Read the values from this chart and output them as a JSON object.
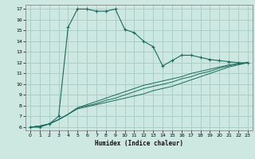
{
  "title": "",
  "xlabel": "Humidex (Indice chaleur)",
  "ylabel": "",
  "bg_color": "#cce8e0",
  "grid_color": "#aacfc8",
  "line_color": "#1a6b5e",
  "xlim": [
    -0.5,
    23.5
  ],
  "ylim": [
    5.7,
    17.4
  ],
  "xticks": [
    0,
    1,
    2,
    3,
    4,
    5,
    6,
    7,
    8,
    9,
    10,
    11,
    12,
    13,
    14,
    15,
    16,
    17,
    18,
    19,
    20,
    21,
    22,
    23
  ],
  "yticks": [
    6,
    7,
    8,
    9,
    10,
    11,
    12,
    13,
    14,
    15,
    16,
    17
  ],
  "curve1_x": [
    0,
    1,
    2,
    3,
    4,
    5,
    6,
    7,
    8,
    9,
    10,
    11,
    12,
    13,
    14,
    15,
    16,
    17,
    18,
    19,
    20,
    21,
    22,
    23
  ],
  "curve1_y": [
    6.0,
    6.0,
    6.3,
    7.0,
    15.3,
    17.0,
    17.0,
    16.8,
    16.8,
    17.0,
    15.1,
    14.8,
    14.0,
    13.5,
    11.7,
    12.2,
    12.7,
    12.7,
    12.5,
    12.3,
    12.2,
    12.1,
    12.0,
    12.0
  ],
  "curve2_x": [
    0,
    1,
    2,
    3,
    4,
    5,
    6,
    7,
    8,
    9,
    10,
    11,
    12,
    13,
    14,
    15,
    16,
    17,
    18,
    19,
    20,
    21,
    22,
    23
  ],
  "curve2_y": [
    6.0,
    6.1,
    6.3,
    6.7,
    7.2,
    7.7,
    7.9,
    8.1,
    8.3,
    8.5,
    8.7,
    8.9,
    9.1,
    9.4,
    9.6,
    9.8,
    10.1,
    10.4,
    10.7,
    11.0,
    11.3,
    11.6,
    11.8,
    12.0
  ],
  "curve3_x": [
    0,
    1,
    2,
    3,
    4,
    5,
    6,
    7,
    8,
    9,
    10,
    11,
    12,
    13,
    14,
    15,
    16,
    17,
    18,
    19,
    20,
    21,
    22,
    23
  ],
  "curve3_y": [
    6.0,
    6.1,
    6.3,
    6.7,
    7.2,
    7.8,
    8.0,
    8.2,
    8.5,
    8.7,
    9.0,
    9.3,
    9.6,
    9.8,
    10.0,
    10.2,
    10.5,
    10.7,
    11.0,
    11.2,
    11.5,
    11.7,
    11.9,
    12.0
  ],
  "curve4_x": [
    0,
    1,
    2,
    3,
    4,
    5,
    6,
    7,
    8,
    9,
    10,
    11,
    12,
    13,
    14,
    15,
    16,
    17,
    18,
    19,
    20,
    21,
    22,
    23
  ],
  "curve4_y": [
    6.0,
    6.1,
    6.3,
    6.7,
    7.2,
    7.8,
    8.1,
    8.4,
    8.7,
    9.0,
    9.3,
    9.6,
    9.9,
    10.1,
    10.3,
    10.5,
    10.7,
    11.0,
    11.2,
    11.4,
    11.6,
    11.8,
    11.9,
    12.0
  ]
}
